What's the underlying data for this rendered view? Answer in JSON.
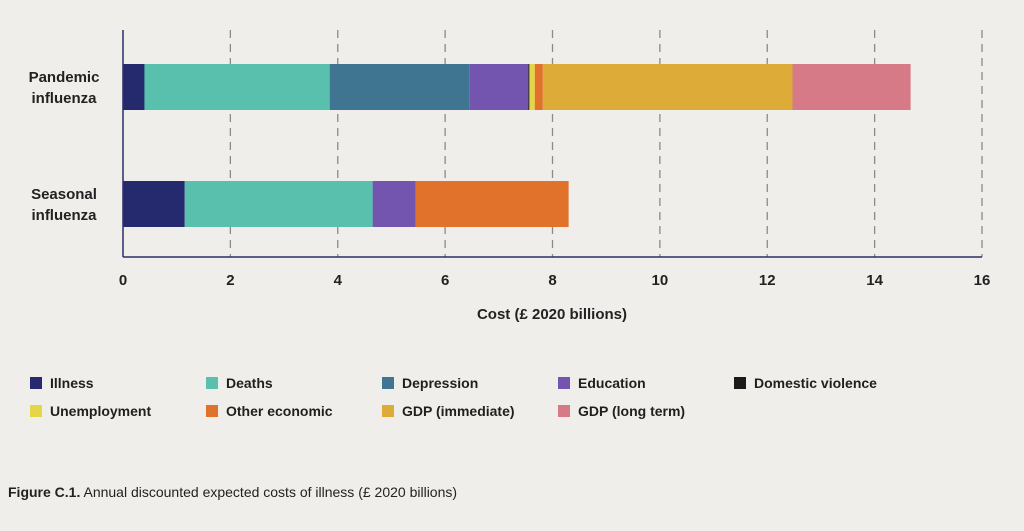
{
  "chart_data": {
    "type": "bar",
    "orientation": "horizontal",
    "stacked": true,
    "categories": [
      "Pandemic\ninfluenza",
      "Seasonal\ninfluenza"
    ],
    "series": [
      {
        "name": "Illness",
        "color": "#252a6e",
        "values": [
          0.4,
          1.15
        ]
      },
      {
        "name": "Deaths",
        "color": "#58c0ac",
        "values": [
          3.45,
          3.5
        ]
      },
      {
        "name": "Depression",
        "color": "#3f7590",
        "values": [
          2.6,
          0
        ]
      },
      {
        "name": "Education",
        "color": "#7355b0",
        "values": [
          1.1,
          0.8
        ]
      },
      {
        "name": "Domestic violence",
        "color": "#1a1a1a",
        "values": [
          0.02,
          0
        ]
      },
      {
        "name": "Unemployment",
        "color": "#e6d545",
        "values": [
          0.1,
          0
        ]
      },
      {
        "name": "Other economic",
        "color": "#e0722c",
        "values": [
          0.15,
          2.85
        ]
      },
      {
        "name": "GDP (immediate)",
        "color": "#dcab38",
        "values": [
          4.65,
          0
        ]
      },
      {
        "name": "GDP (long term)",
        "color": "#d77a87",
        "values": [
          2.2,
          0
        ]
      }
    ],
    "xlabel": "Cost (£ 2020 billions)",
    "xlim": [
      0,
      16
    ],
    "xticks": [
      "0",
      "2",
      "4",
      "6",
      "8",
      "10",
      "12",
      "14",
      "16"
    ],
    "grid": "vertical dashed",
    "legend_position": "bottom"
  },
  "caption": {
    "label": "Figure C.1.",
    "text": " Annual discounted expected costs of illness (£ 2020 billions)"
  }
}
